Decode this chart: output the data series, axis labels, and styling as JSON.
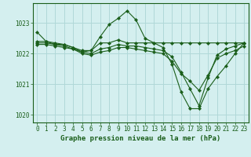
{
  "lines": [
    {
      "x": [
        0,
        1,
        2,
        3,
        4,
        5,
        6,
        7,
        8,
        9,
        10,
        11,
        12,
        13,
        14,
        15,
        16,
        17,
        18,
        19,
        20,
        21,
        22,
        23
      ],
      "y": [
        1022.7,
        1022.4,
        1022.3,
        1022.3,
        1022.2,
        1022.1,
        1022.1,
        1022.35,
        1022.35,
        1022.45,
        1022.35,
        1022.35,
        1022.35,
        1022.35,
        1022.35,
        1022.35,
        1022.35,
        1022.35,
        1022.35,
        1022.35,
        1022.35,
        1022.35,
        1022.35,
        1022.35
      ],
      "color": "#1a5e1a",
      "marker": "D",
      "markersize": 2.2,
      "linewidth": 0.8
    },
    {
      "x": [
        0,
        1,
        2,
        3,
        4,
        5,
        6,
        7,
        8,
        9,
        10,
        11,
        12,
        13,
        14,
        15,
        16,
        17,
        18,
        19,
        20,
        21,
        22,
        23
      ],
      "y": [
        1022.4,
        1022.4,
        1022.35,
        1022.3,
        1022.2,
        1022.05,
        1022.1,
        1022.55,
        1022.95,
        1023.15,
        1023.4,
        1023.1,
        1022.5,
        1022.35,
        1022.2,
        1021.65,
        1020.75,
        1020.2,
        1020.2,
        1020.85,
        1021.25,
        1021.6,
        1022.0,
        1022.35
      ],
      "color": "#1a5e1a",
      "marker": "D",
      "markersize": 2.2,
      "linewidth": 0.8
    },
    {
      "x": [
        0,
        1,
        2,
        3,
        4,
        5,
        6,
        7,
        8,
        9,
        10,
        11,
        12,
        13,
        14,
        15,
        16,
        17,
        18,
        19,
        20,
        21,
        22,
        23
      ],
      "y": [
        1022.35,
        1022.35,
        1022.3,
        1022.25,
        1022.15,
        1022.05,
        1022.0,
        1022.15,
        1022.2,
        1022.3,
        1022.25,
        1022.25,
        1022.2,
        1022.15,
        1022.1,
        1021.9,
        1021.4,
        1020.85,
        1020.3,
        1021.2,
        1021.95,
        1022.15,
        1022.25,
        1022.35
      ],
      "color": "#1a5e1a",
      "marker": "D",
      "markersize": 2.2,
      "linewidth": 0.8
    },
    {
      "x": [
        0,
        1,
        2,
        3,
        4,
        5,
        6,
        7,
        8,
        9,
        10,
        11,
        12,
        13,
        14,
        15,
        16,
        17,
        18,
        19,
        20,
        21,
        22,
        23
      ],
      "y": [
        1022.3,
        1022.3,
        1022.25,
        1022.2,
        1022.15,
        1022.0,
        1021.95,
        1022.05,
        1022.1,
        1022.2,
        1022.2,
        1022.15,
        1022.1,
        1022.05,
        1022.0,
        1021.75,
        1021.35,
        1021.1,
        1020.8,
        1021.3,
        1021.85,
        1022.0,
        1022.1,
        1022.25
      ],
      "color": "#1a5e1a",
      "marker": "D",
      "markersize": 2.2,
      "linewidth": 0.8
    }
  ],
  "xlim": [
    -0.5,
    23.5
  ],
  "ylim": [
    1019.75,
    1023.65
  ],
  "yticks": [
    1020,
    1021,
    1022,
    1023
  ],
  "xticks": [
    0,
    1,
    2,
    3,
    4,
    5,
    6,
    7,
    8,
    9,
    10,
    11,
    12,
    13,
    14,
    15,
    16,
    17,
    18,
    19,
    20,
    21,
    22,
    23
  ],
  "xlabel": "Graphe pression niveau de la mer (hPa)",
  "background_color": "#d4efef",
  "grid_color": "#b0d8d8",
  "axis_color": "#1a5e1a",
  "label_color": "#1a5e1a",
  "tick_color": "#1a5e1a",
  "xlabel_fontsize": 6.5,
  "tick_fontsize": 5.5
}
